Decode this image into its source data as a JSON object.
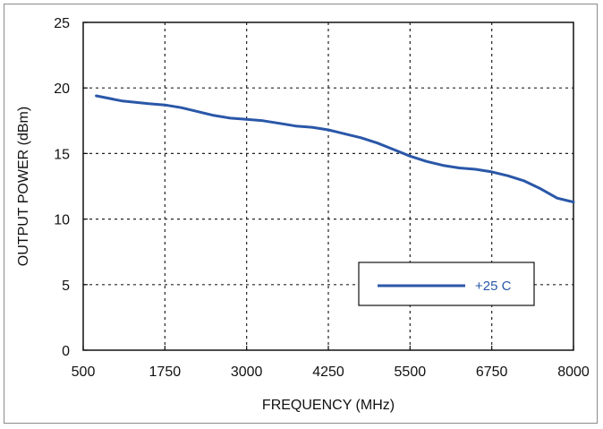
{
  "chart_data": {
    "type": "line",
    "title": "",
    "xlabel": "FREQUENCY (MHz)",
    "ylabel": "OUTPUT POWER (dBm)",
    "xlim": [
      500,
      8000
    ],
    "ylim": [
      0,
      25
    ],
    "xticks": [
      500,
      1750,
      3000,
      4250,
      5500,
      6750,
      8000
    ],
    "yticks": [
      0,
      5,
      10,
      15,
      20,
      25
    ],
    "grid": true,
    "legend_position": "bottom-right",
    "series": [
      {
        "name": "+25 C",
        "color": "#2a57a8",
        "x": [
          700,
          900,
          1100,
          1300,
          1500,
          1750,
          2000,
          2250,
          2500,
          2750,
          3000,
          3250,
          3500,
          3750,
          4000,
          4250,
          4500,
          4750,
          5000,
          5250,
          5500,
          5750,
          6000,
          6250,
          6500,
          6750,
          7000,
          7250,
          7500,
          7750,
          8000
        ],
        "y": [
          19.4,
          19.2,
          19.0,
          18.9,
          18.8,
          18.7,
          18.5,
          18.2,
          17.9,
          17.7,
          17.6,
          17.5,
          17.3,
          17.1,
          17.0,
          16.8,
          16.5,
          16.2,
          15.8,
          15.3,
          14.8,
          14.4,
          14.1,
          13.9,
          13.8,
          13.6,
          13.3,
          12.9,
          12.3,
          11.6,
          11.3
        ]
      }
    ]
  }
}
